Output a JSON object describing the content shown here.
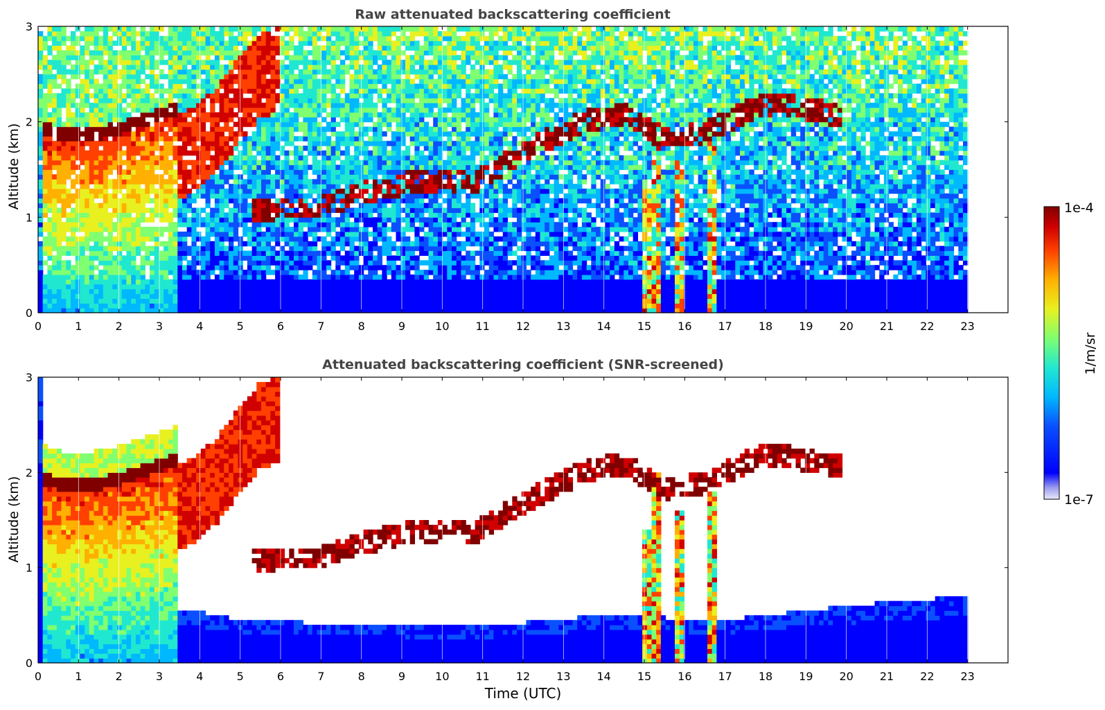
{
  "figure": {
    "shared_xlabel": "Time (UTC)",
    "colorbar": {
      "label": "1/m/sr",
      "top_label": "1e-4",
      "bottom_label": "1e-7",
      "colormap": "jet",
      "scale": "log"
    }
  },
  "chart_data": [
    {
      "type": "heatmap",
      "title": "Raw attenuated backscattering coefficient",
      "xlabel": "",
      "ylabel": "Altitude (km)",
      "xlim": [
        0,
        24
      ],
      "ylim": [
        0,
        3
      ],
      "xticks": [
        0,
        1,
        2,
        3,
        4,
        5,
        6,
        7,
        8,
        9,
        10,
        11,
        12,
        13,
        14,
        15,
        16,
        17,
        18,
        19,
        20,
        21,
        22,
        23
      ],
      "yticks": [
        0,
        1,
        2,
        3
      ],
      "data_xrange": [
        0,
        23
      ],
      "grid": false,
      "screened": false,
      "features": {
        "boundary_layer_top": [
          {
            "time": 0.1,
            "alt": 1.95
          },
          {
            "time": 0.5,
            "alt": 1.88
          },
          {
            "time": 1.0,
            "alt": 1.86
          },
          {
            "time": 1.5,
            "alt": 1.88
          },
          {
            "time": 2.0,
            "alt": 1.93
          },
          {
            "time": 2.5,
            "alt": 2.0
          },
          {
            "time": 3.0,
            "alt": 2.08
          },
          {
            "time": 3.5,
            "alt": 2.15
          }
        ],
        "residual_layer_rise": [
          {
            "time": 3.5,
            "alt": 2.1
          },
          {
            "time": 4.0,
            "alt": 2.2
          },
          {
            "time": 4.5,
            "alt": 2.4
          },
          {
            "time": 5.0,
            "alt": 2.7
          },
          {
            "time": 5.5,
            "alt": 2.95
          },
          {
            "time": 6.0,
            "alt": 3.0
          }
        ],
        "cloud_layer": [
          {
            "time": 5.3,
            "alt": 1.08
          },
          {
            "time": 6.0,
            "alt": 1.1
          },
          {
            "time": 7.0,
            "alt": 1.1
          },
          {
            "time": 8.0,
            "alt": 1.25
          },
          {
            "time": 9.0,
            "alt": 1.35
          },
          {
            "time": 10.0,
            "alt": 1.4
          },
          {
            "time": 10.7,
            "alt": 1.35
          },
          {
            "time": 11.6,
            "alt": 1.58
          },
          {
            "time": 12.5,
            "alt": 1.8
          },
          {
            "time": 13.5,
            "alt": 2.0
          },
          {
            "time": 14.5,
            "alt": 2.1
          },
          {
            "time": 15.5,
            "alt": 1.8
          },
          {
            "time": 16.5,
            "alt": 1.9
          },
          {
            "time": 17.5,
            "alt": 2.1
          },
          {
            "time": 18.0,
            "alt": 2.2
          },
          {
            "time": 19.3,
            "alt": 2.12
          },
          {
            "time": 19.9,
            "alt": 2.05
          }
        ],
        "precipitation_shafts": [
          {
            "time": 15.05,
            "top_alt": 1.4
          },
          {
            "time": 15.3,
            "top_alt": 2.0
          },
          {
            "time": 15.85,
            "top_alt": 1.6
          },
          {
            "time": 16.65,
            "top_alt": 1.8
          }
        ]
      }
    },
    {
      "type": "heatmap",
      "title": "Attenuated backscattering coefficient (SNR-screened)",
      "xlabel": "Time (UTC)",
      "ylabel": "Altitude (km)",
      "xlim": [
        0,
        24
      ],
      "ylim": [
        0,
        3
      ],
      "xticks": [
        0,
        1,
        2,
        3,
        4,
        5,
        6,
        7,
        8,
        9,
        10,
        11,
        12,
        13,
        14,
        15,
        16,
        17,
        18,
        19,
        20,
        21,
        22,
        23
      ],
      "yticks": [
        0,
        1,
        2,
        3
      ],
      "data_xrange": [
        0,
        23
      ],
      "grid": false,
      "screened": true,
      "features": {
        "low_snr_floor": [
          {
            "time": 3.2,
            "alt": 0.6
          },
          {
            "time": 5.0,
            "alt": 0.45
          },
          {
            "time": 8.0,
            "alt": 0.4
          },
          {
            "time": 11.0,
            "alt": 0.38
          },
          {
            "time": 14.0,
            "alt": 0.5
          },
          {
            "time": 17.0,
            "alt": 0.45
          },
          {
            "time": 20.0,
            "alt": 0.6
          },
          {
            "time": 23.0,
            "alt": 0.7
          }
        ]
      }
    }
  ]
}
